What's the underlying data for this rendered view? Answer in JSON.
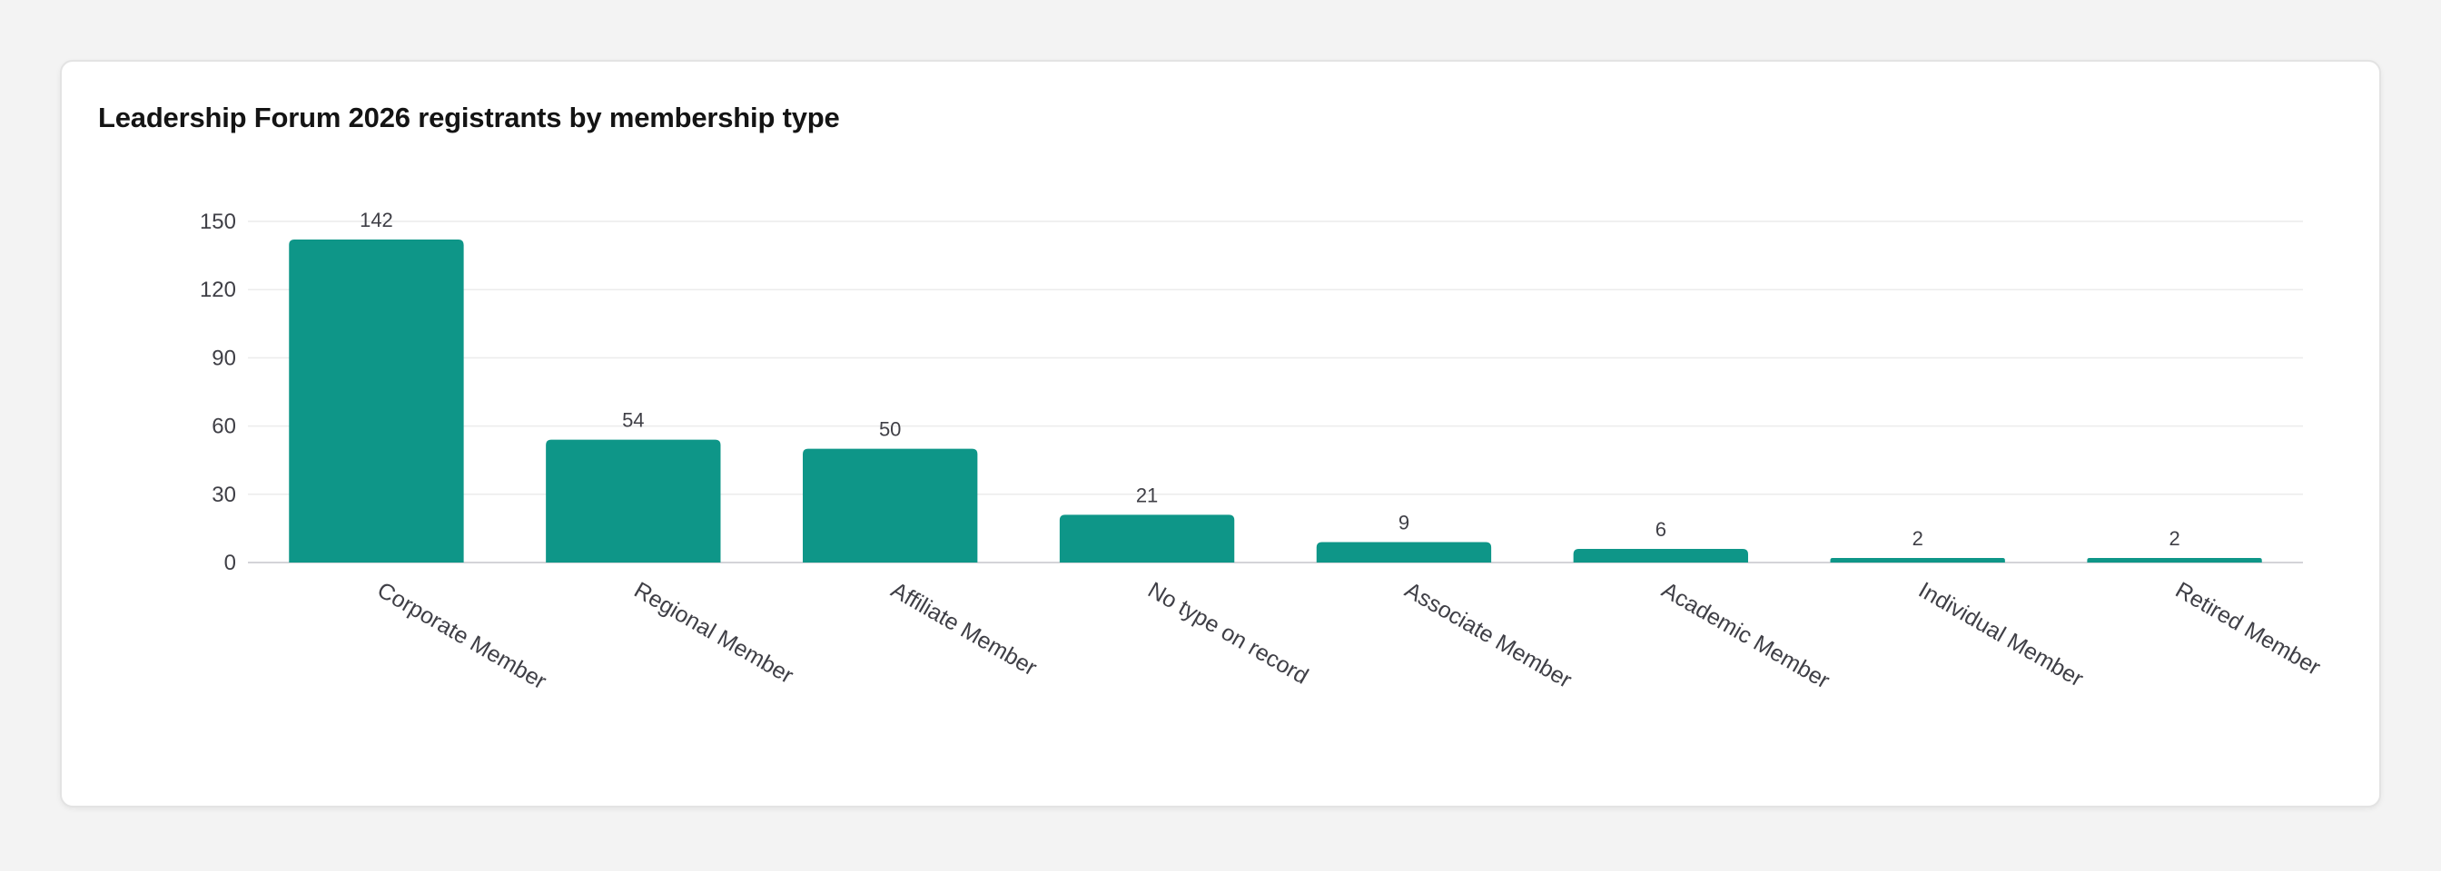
{
  "chart_data": {
    "type": "bar",
    "title": "Leadership Forum 2026 registrants by membership type",
    "xlabel": "",
    "ylabel": "",
    "categories": [
      "Corporate Member",
      "Regional Member",
      "Affiliate Member",
      "No type on record",
      "Associate Member",
      "Academic Member",
      "Individual Member",
      "Retired Member"
    ],
    "values": [
      142,
      54,
      50,
      21,
      9,
      6,
      2,
      2
    ],
    "ylim": [
      0,
      150
    ],
    "yticks": [
      0,
      30,
      60,
      90,
      120,
      150
    ],
    "grid": true,
    "legend": "none",
    "bar_color": "#0e9688",
    "data_labels": true
  }
}
